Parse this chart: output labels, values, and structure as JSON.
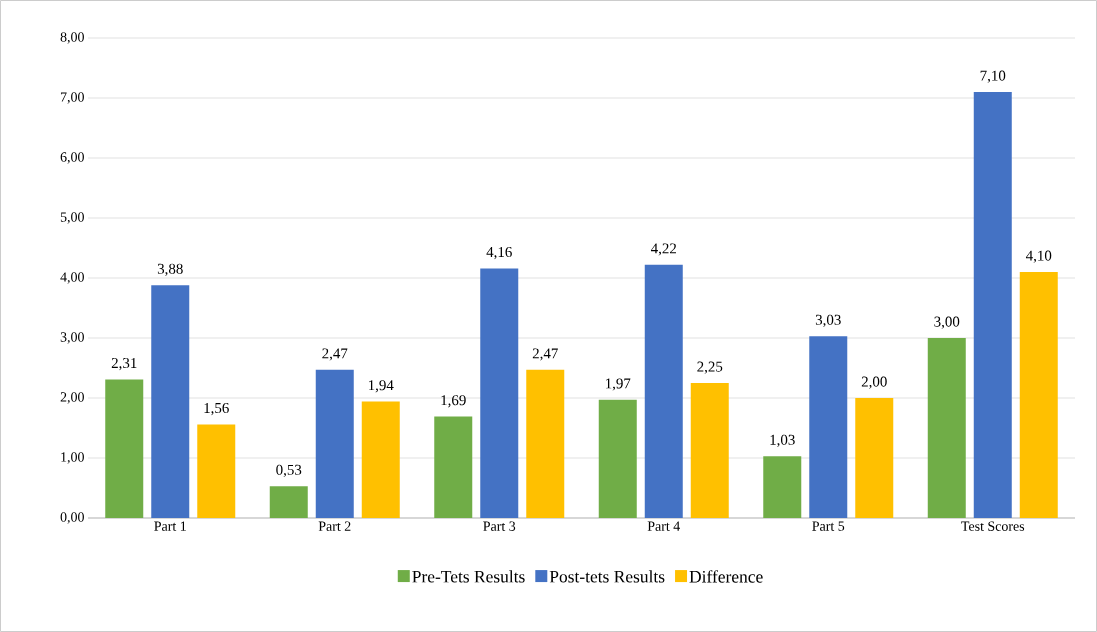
{
  "chart_data": {
    "type": "bar",
    "categories": [
      "Part 1",
      "Part 2",
      "Part 3",
      "Part 4",
      "Part 5",
      "Test Scores"
    ],
    "series": [
      {
        "name": "Pre-Tets Results",
        "color": "#70ad47",
        "values": [
          2.31,
          0.53,
          1.69,
          1.97,
          1.03,
          3.0
        ],
        "value_labels": [
          "2,31",
          "0,53",
          "1,69",
          "1,97",
          "1,03",
          "3,00"
        ]
      },
      {
        "name": "Post-tets Results",
        "color": "#4472c4",
        "values": [
          3.88,
          2.47,
          4.16,
          4.22,
          3.03,
          7.1
        ],
        "value_labels": [
          "3,88",
          "2,47",
          "4,16",
          "4,22",
          "3,03",
          "7,10"
        ]
      },
      {
        "name": "Difference",
        "color": "#ffc000",
        "values": [
          1.56,
          1.94,
          2.47,
          2.25,
          2.0,
          4.1
        ],
        "value_labels": [
          "1,56",
          "1,94",
          "2,47",
          "2,25",
          "2,00",
          "4,10"
        ]
      }
    ],
    "ylim": [
      0,
      8
    ],
    "yticks": [
      {
        "value": 0,
        "label": "0,00"
      },
      {
        "value": 1,
        "label": "1,00"
      },
      {
        "value": 2,
        "label": "2,00"
      },
      {
        "value": 3,
        "label": "3,00"
      },
      {
        "value": 4,
        "label": "4,00"
      },
      {
        "value": 5,
        "label": "5,00"
      },
      {
        "value": 6,
        "label": "6,00"
      },
      {
        "value": 7,
        "label": "7,00"
      },
      {
        "value": 8,
        "label": "8,00"
      }
    ],
    "grid": "y",
    "legend": "bottom"
  }
}
